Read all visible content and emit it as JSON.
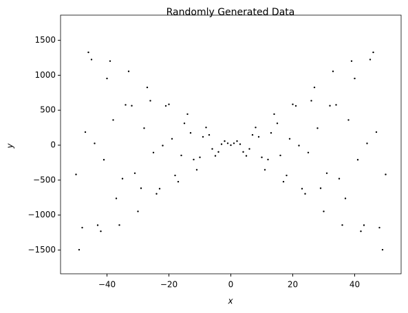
{
  "chart_data": {
    "type": "scatter",
    "title": "Randomly Generated Data",
    "x_label": "x",
    "y_label": "y",
    "x": [
      -50,
      -49,
      -48,
      -47,
      -46,
      -45,
      -44,
      -43,
      -42,
      -41,
      -40,
      -39,
      -38,
      -37,
      -36,
      -35,
      -34,
      -33,
      -32,
      -31,
      -30,
      -29,
      -28,
      -27,
      -26,
      -25,
      -24,
      -23,
      -22,
      -21,
      -20,
      -19,
      -18,
      -17,
      -16,
      -15,
      -14,
      -13,
      -12,
      -11,
      -10,
      -9,
      -8,
      -7,
      -6,
      -5,
      -4,
      -3,
      -2,
      -1,
      0,
      1,
      2,
      3,
      4,
      5,
      6,
      7,
      8,
      9,
      10,
      11,
      12,
      13,
      14,
      15,
      16,
      17,
      18,
      19,
      20,
      21,
      22,
      23,
      24,
      25,
      26,
      27,
      28,
      29,
      30,
      31,
      32,
      33,
      34,
      35,
      36,
      37,
      38,
      39,
      40,
      41,
      42,
      43,
      44,
      45,
      46,
      47,
      48,
      49,
      50
    ],
    "values": [
      -419,
      -1496,
      -1180,
      187,
      1328,
      1225,
      25,
      -1145,
      -1232,
      -209,
      954,
      1203,
      360,
      -762,
      -1143,
      -479,
      576,
      1056,
      564,
      -401,
      -948,
      -616,
      243,
      826,
      635,
      -106,
      -696,
      -623,
      -6,
      562,
      584,
      91,
      -433,
      -523,
      -147,
      312,
      444,
      175,
      -206,
      -352,
      -174,
      119,
      253,
      147,
      -54,
      -153,
      -97,
      14,
      58,
      27,
      0,
      27,
      58,
      14,
      -97,
      -153,
      -54,
      147,
      253,
      119,
      -174,
      -352,
      -206,
      175,
      444,
      312,
      -147,
      -523,
      -433,
      91,
      584,
      562,
      -6,
      -623,
      -696,
      -106,
      635,
      826,
      243,
      -616,
      -948,
      -401,
      564,
      1056,
      576,
      -479,
      -1143,
      -762,
      360,
      1203,
      954,
      -209,
      -1232,
      -1145,
      25,
      1225,
      1328,
      187,
      -1180,
      -1496,
      -419
    ],
    "color": "#000000",
    "xlim": [
      -55,
      55
    ],
    "xticks": [
      {
        "value": -40,
        "label": "−40"
      },
      {
        "value": -20,
        "label": "−20"
      },
      0,
      20,
      40
    ],
    "ylim": [
      -1840,
      1860
    ],
    "yticks": [
      {
        "value": -1500,
        "label": "−1500"
      },
      {
        "value": -1000,
        "label": "−1000"
      },
      {
        "value": -500,
        "label": "−500"
      },
      0,
      500,
      1000,
      1500
    ],
    "grid": false
  }
}
